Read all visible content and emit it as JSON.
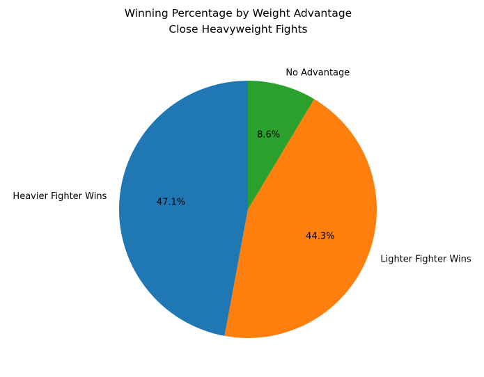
{
  "chart_data": {
    "type": "pie",
    "title": [
      "Winning Percentage by Weight Advantage",
      "Close Heavyweight Fights"
    ],
    "categories": [
      "Heavier Fighter Wins",
      "Lighter Fighter Wins",
      "No Advantage"
    ],
    "values": [
      47.1,
      44.3,
      8.6
    ],
    "percent_labels": [
      "47.1%",
      "44.3%",
      "8.6%"
    ],
    "colors": [
      "#1f77b4",
      "#ff7f0e",
      "#2ca02c"
    ],
    "start_angle": "90 degrees (top)",
    "direction": "counter-clockwise",
    "legend": "none"
  }
}
